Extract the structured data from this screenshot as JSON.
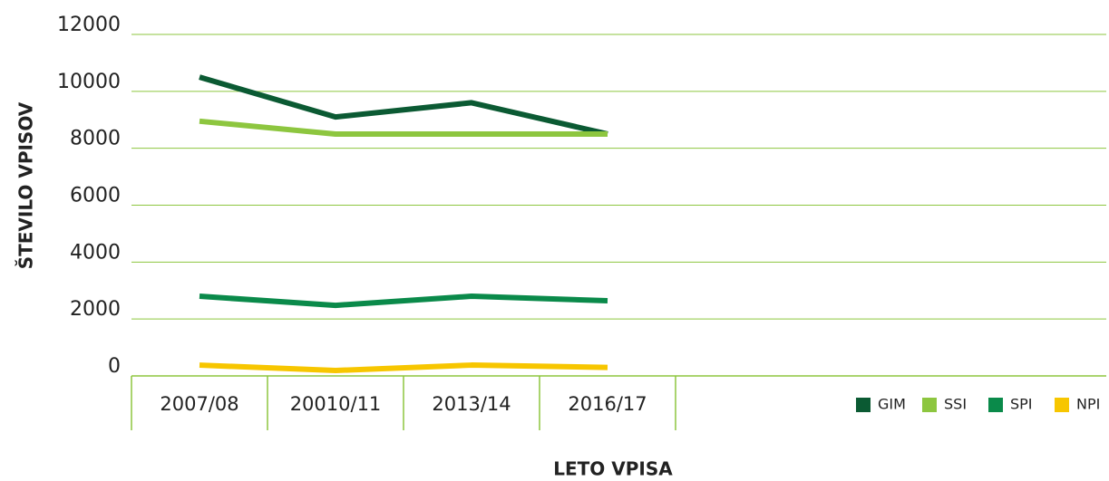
{
  "chart_data": {
    "type": "line",
    "xlabel": "LETO VPISA",
    "ylabel": "ŠTEVILO VPISOV",
    "categories": [
      "2007/08",
      "20010/11",
      "2013/14",
      "2016/17"
    ],
    "series": [
      {
        "name": "GIM",
        "color": "#0b5a33",
        "values": [
          10500,
          9100,
          9600,
          8500
        ]
      },
      {
        "name": "SSI",
        "color": "#8dc63f",
        "values": [
          8950,
          8500,
          8500,
          8500
        ]
      },
      {
        "name": "SPI",
        "color": "#0a8a4a",
        "values": [
          2800,
          2480,
          2800,
          2640
        ]
      },
      {
        "name": "NPI",
        "color": "#f7c600",
        "values": [
          380,
          190,
          380,
          300
        ]
      }
    ],
    "ylim": [
      0,
      12000
    ],
    "yticks": [
      0,
      2000,
      4000,
      6000,
      8000,
      10000,
      12000
    ],
    "grid": true,
    "legend": "bottom-right"
  }
}
